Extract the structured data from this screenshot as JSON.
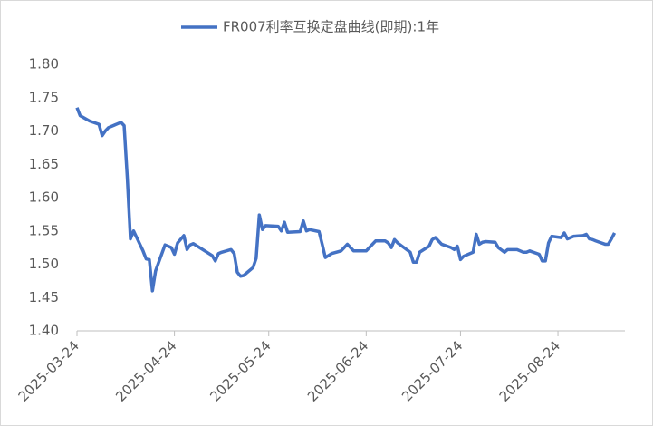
{
  "chart_data": {
    "type": "line",
    "series": [
      {
        "name": "FR007利率互换定盘曲线(即期):1年",
        "color": "#4472c4",
        "x": [
          "2025-03-24",
          "2025-03-25",
          "2025-03-28",
          "2025-03-31",
          "2025-04-01",
          "2025-04-02",
          "2025-04-03",
          "2025-04-07",
          "2025-04-08",
          "2025-04-09",
          "2025-04-10",
          "2025-04-11",
          "2025-04-14",
          "2025-04-15",
          "2025-04-16",
          "2025-04-17",
          "2025-04-18",
          "2025-04-21",
          "2025-04-22",
          "2025-04-23",
          "2025-04-24",
          "2025-04-25",
          "2025-04-27",
          "2025-04-28",
          "2025-04-29",
          "2025-04-30",
          "2025-05-06",
          "2025-05-07",
          "2025-05-08",
          "2025-05-09",
          "2025-05-12",
          "2025-05-13",
          "2025-05-14",
          "2025-05-15",
          "2025-05-16",
          "2025-05-19",
          "2025-05-20",
          "2025-05-21",
          "2025-05-22",
          "2025-05-23",
          "2025-05-27",
          "2025-05-28",
          "2025-05-29",
          "2025-05-30",
          "2025-06-03",
          "2025-06-04",
          "2025-06-05",
          "2025-06-06",
          "2025-06-09",
          "2025-06-10",
          "2025-06-11",
          "2025-06-12",
          "2025-06-13",
          "2025-06-16",
          "2025-06-18",
          "2025-06-19",
          "2025-06-20",
          "2025-06-23",
          "2025-06-24",
          "2025-06-25",
          "2025-06-26",
          "2025-06-27",
          "2025-06-30",
          "2025-07-01",
          "2025-07-02",
          "2025-07-03",
          "2025-07-04",
          "2025-07-08",
          "2025-07-09",
          "2025-07-10",
          "2025-07-11",
          "2025-07-14",
          "2025-07-15",
          "2025-07-16",
          "2025-07-17",
          "2025-07-18",
          "2025-07-21",
          "2025-07-22",
          "2025-07-23",
          "2025-07-24",
          "2025-07-25",
          "2025-07-28",
          "2025-07-29",
          "2025-07-30",
          "2025-07-31",
          "2025-08-01",
          "2025-08-04",
          "2025-08-05",
          "2025-08-07",
          "2025-08-08",
          "2025-08-11",
          "2025-08-12",
          "2025-08-13",
          "2025-08-14",
          "2025-08-15",
          "2025-08-18",
          "2025-08-19",
          "2025-08-20",
          "2025-08-21",
          "2025-08-22",
          "2025-08-25",
          "2025-08-26",
          "2025-08-27",
          "2025-08-28",
          "2025-08-29",
          "2025-09-01",
          "2025-09-02",
          "2025-09-03",
          "2025-09-04",
          "2025-09-05",
          "2025-09-08",
          "2025-09-09",
          "2025-09-10",
          "2025-09-11"
        ],
        "values": [
          1.735,
          1.723,
          1.715,
          1.71,
          1.693,
          1.7,
          1.705,
          1.713,
          1.708,
          1.63,
          1.538,
          1.55,
          1.52,
          1.508,
          1.507,
          1.46,
          1.49,
          1.529,
          1.527,
          1.525,
          1.515,
          1.532,
          1.543,
          1.522,
          1.529,
          1.531,
          1.513,
          1.505,
          1.516,
          1.518,
          1.522,
          1.516,
          1.488,
          1.482,
          1.483,
          1.495,
          1.509,
          1.574,
          1.552,
          1.558,
          1.557,
          1.55,
          1.563,
          1.548,
          1.549,
          1.565,
          1.55,
          1.552,
          1.549,
          1.53,
          1.51,
          1.513,
          1.516,
          1.52,
          1.53,
          1.525,
          1.52,
          1.52,
          1.52,
          1.525,
          1.53,
          1.535,
          1.535,
          1.532,
          1.525,
          1.537,
          1.532,
          1.518,
          1.503,
          1.503,
          1.518,
          1.527,
          1.537,
          1.54,
          1.535,
          1.53,
          1.525,
          1.522,
          1.527,
          1.507,
          1.512,
          1.518,
          1.545,
          1.53,
          1.533,
          1.534,
          1.533,
          1.525,
          1.518,
          1.522,
          1.522,
          1.52,
          1.518,
          1.518,
          1.52,
          1.515,
          1.505,
          1.505,
          1.532,
          1.542,
          1.54,
          1.547,
          1.538,
          1.54,
          1.542,
          1.543,
          1.545,
          1.538,
          1.537,
          1.535,
          1.53,
          1.53,
          1.538,
          1.547
        ]
      }
    ],
    "xlim": [
      "2025-03-24",
      "2025-09-12"
    ],
    "xticks": [
      "2025-03-24",
      "2025-04-24",
      "2025-05-24",
      "2025-06-24",
      "2025-07-24",
      "2025-08-24"
    ],
    "ylim": [
      1.4,
      1.8
    ],
    "yticks": [
      {
        "value": 1.4,
        "label": "1.40"
      },
      {
        "value": 1.45,
        "label": "1.45"
      },
      {
        "value": 1.5,
        "label": "1.50"
      },
      {
        "value": 1.55,
        "label": "1.55"
      },
      {
        "value": 1.6,
        "label": "1.60"
      },
      {
        "value": 1.65,
        "label": "1.65"
      },
      {
        "value": 1.7,
        "label": "1.70"
      },
      {
        "value": 1.75,
        "label": "1.75"
      },
      {
        "value": 1.8,
        "label": "1.80"
      }
    ],
    "legend": "top",
    "grid": false
  }
}
